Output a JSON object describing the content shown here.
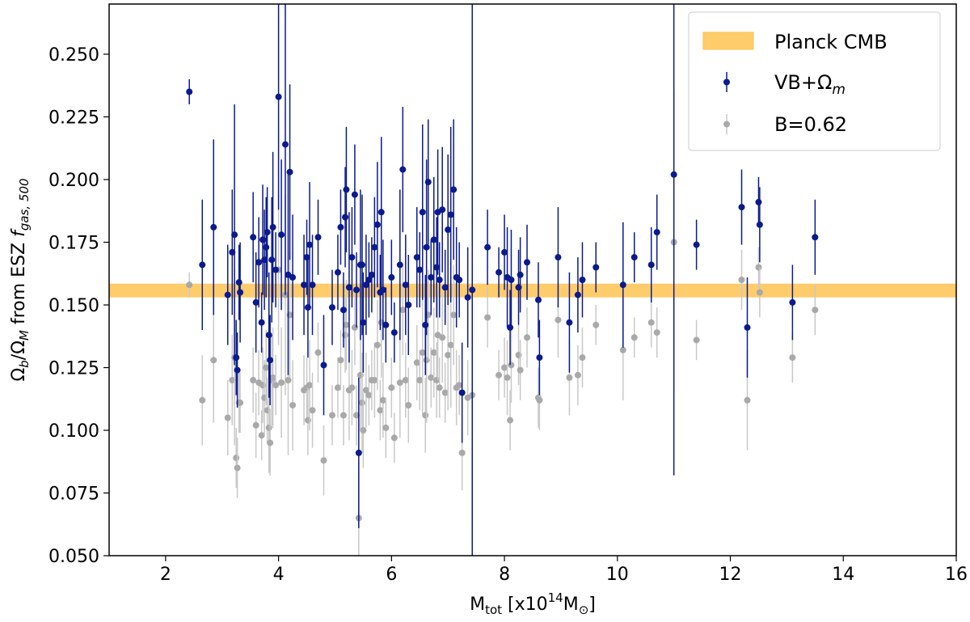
{
  "chart_data": {
    "type": "scatter",
    "title": "",
    "xlabel": {
      "main": "M",
      "sub": "tot",
      "rest1": " [x10",
      "sup": "14",
      "rest2": "M",
      "sub2": "⊙",
      "rest3": "]"
    },
    "ylabel": {
      "a": "Ω",
      "a_sub": "b",
      "b": "/Ω",
      "b_sub": "M",
      "c": " from ESZ ",
      "f": "f",
      "f_sub": "gas, 500"
    },
    "xlim": [
      1,
      16
    ],
    "ylim": [
      0.05,
      0.27
    ],
    "xticks": [
      2,
      4,
      6,
      8,
      10,
      12,
      14,
      16
    ],
    "yticks": [
      0.05,
      0.075,
      0.1,
      0.125,
      0.15,
      0.175,
      0.2,
      0.225,
      0.25
    ],
    "ytick_labels": [
      "0.050",
      "0.075",
      "0.100",
      "0.125",
      "0.150",
      "0.175",
      "0.200",
      "0.225",
      "0.250"
    ],
    "legend_position": "top-right",
    "band": {
      "name": "Planck CMB",
      "ymin": 0.153,
      "ymax": 0.1585,
      "color": "#FFBF47"
    },
    "legend": {
      "band_label": "Planck CMB",
      "s1_main": "VB+Ω",
      "s1_sub": "m",
      "s2_label": "B=0.62"
    },
    "series": [
      {
        "name": "VB+Ωm",
        "color": "#0B1A8C",
        "points": [
          [
            2.42,
            0.235,
            0.005
          ],
          [
            2.65,
            0.166,
            0.026
          ],
          [
            2.85,
            0.181,
            0.035
          ],
          [
            3.1,
            0.154,
            0.02
          ],
          [
            3.18,
            0.171,
            0.025
          ],
          [
            3.22,
            0.178,
            0.052
          ],
          [
            3.25,
            0.129,
            0.015
          ],
          [
            3.27,
            0.124,
            0.015
          ],
          [
            3.3,
            0.159,
            0.015
          ],
          [
            3.32,
            0.155,
            0.02
          ],
          [
            3.55,
            0.177,
            0.018
          ],
          [
            3.6,
            0.151,
            0.02
          ],
          [
            3.65,
            0.167,
            0.018
          ],
          [
            3.7,
            0.143,
            0.012
          ],
          [
            3.72,
            0.176,
            0.022
          ],
          [
            3.75,
            0.168,
            0.02
          ],
          [
            3.78,
            0.173,
            0.02
          ],
          [
            3.8,
            0.179,
            0.018
          ],
          [
            3.83,
            0.138,
            0.025
          ],
          [
            3.85,
            0.128,
            0.018
          ],
          [
            3.88,
            0.168,
            0.025
          ],
          [
            3.9,
            0.181,
            0.03
          ],
          [
            3.95,
            0.164,
            0.015
          ],
          [
            4.0,
            0.233,
            0.045
          ],
          [
            4.05,
            0.178,
            0.03
          ],
          [
            4.12,
            0.214,
            0.06
          ],
          [
            4.17,
            0.162,
            0.04
          ],
          [
            4.2,
            0.203,
            0.035
          ],
          [
            4.25,
            0.161,
            0.025
          ],
          [
            4.45,
            0.158,
            0.02
          ],
          [
            4.5,
            0.169,
            0.015
          ],
          [
            4.52,
            0.149,
            0.02
          ],
          [
            4.55,
            0.174,
            0.025
          ],
          [
            4.6,
            0.158,
            0.02
          ],
          [
            4.7,
            0.177,
            0.015
          ],
          [
            4.8,
            0.126,
            0.02
          ],
          [
            4.95,
            0.149,
            0.015
          ],
          [
            5.05,
            0.163,
            0.015
          ],
          [
            5.1,
            0.181,
            0.015
          ],
          [
            5.15,
            0.148,
            0.015
          ],
          [
            5.18,
            0.185,
            0.02
          ],
          [
            5.2,
            0.196,
            0.025
          ],
          [
            5.25,
            0.157,
            0.03
          ],
          [
            5.3,
            0.169,
            0.02
          ],
          [
            5.35,
            0.194,
            0.02
          ],
          [
            5.38,
            0.156,
            0.015
          ],
          [
            5.42,
            0.091,
            0.03
          ],
          [
            5.45,
            0.166,
            0.03
          ],
          [
            5.48,
            0.166,
            0.028
          ],
          [
            5.5,
            0.143,
            0.02
          ],
          [
            5.55,
            0.158,
            0.02
          ],
          [
            5.6,
            0.16,
            0.015
          ],
          [
            5.65,
            0.162,
            0.015
          ],
          [
            5.7,
            0.173,
            0.02
          ],
          [
            5.75,
            0.182,
            0.025
          ],
          [
            5.8,
            0.155,
            0.015
          ],
          [
            5.82,
            0.187,
            0.03
          ],
          [
            5.85,
            0.156,
            0.02
          ],
          [
            5.9,
            0.142,
            0.015
          ],
          [
            6.0,
            0.161,
            0.015
          ],
          [
            6.05,
            0.139,
            0.012
          ],
          [
            6.15,
            0.166,
            0.03
          ],
          [
            6.2,
            0.204,
            0.025
          ],
          [
            6.25,
            0.158,
            0.02
          ],
          [
            6.3,
            0.15,
            0.02
          ],
          [
            6.45,
            0.169,
            0.02
          ],
          [
            6.5,
            0.164,
            0.015
          ],
          [
            6.55,
            0.187,
            0.035
          ],
          [
            6.6,
            0.142,
            0.02
          ],
          [
            6.62,
            0.173,
            0.035
          ],
          [
            6.65,
            0.199,
            0.025
          ],
          [
            6.7,
            0.161,
            0.015
          ],
          [
            6.75,
            0.176,
            0.025
          ],
          [
            6.8,
            0.165,
            0.02
          ],
          [
            6.82,
            0.187,
            0.025
          ],
          [
            6.85,
            0.16,
            0.015
          ],
          [
            6.9,
            0.188,
            0.025
          ],
          [
            6.95,
            0.157,
            0.015
          ],
          [
            7.0,
            0.18,
            0.03
          ],
          [
            7.05,
            0.186,
            0.035
          ],
          [
            7.1,
            0.196,
            0.028
          ],
          [
            7.15,
            0.161,
            0.02
          ],
          [
            7.2,
            0.16,
            0.015
          ],
          [
            7.25,
            0.115,
            0.02
          ],
          [
            7.35,
            0.153,
            0.02
          ],
          [
            7.43,
            0.156,
            0.115
          ],
          [
            7.7,
            0.173,
            0.015
          ],
          [
            7.9,
            0.163,
            0.01
          ],
          [
            8.0,
            0.171,
            0.015
          ],
          [
            8.05,
            0.161,
            0.02
          ],
          [
            8.1,
            0.141,
            0.015
          ],
          [
            8.12,
            0.16,
            0.02
          ],
          [
            8.25,
            0.157,
            0.015
          ],
          [
            8.28,
            0.162,
            0.015
          ],
          [
            8.4,
            0.167,
            0.015
          ],
          [
            8.6,
            0.152,
            0.015
          ],
          [
            8.62,
            0.129,
            0.015
          ],
          [
            8.95,
            0.169,
            0.02
          ],
          [
            9.15,
            0.143,
            0.02
          ],
          [
            9.3,
            0.154,
            0.015
          ],
          [
            9.38,
            0.16,
            0.015
          ],
          [
            9.62,
            0.165,
            0.01
          ],
          [
            10.1,
            0.158,
            0.025
          ],
          [
            10.3,
            0.169,
            0.01
          ],
          [
            10.6,
            0.166,
            0.015
          ],
          [
            10.7,
            0.179,
            0.015
          ],
          [
            11.0,
            0.202,
            0.12
          ],
          [
            11.4,
            0.174,
            0.01
          ],
          [
            12.2,
            0.189,
            0.015
          ],
          [
            12.3,
            0.141,
            0.02
          ],
          [
            12.5,
            0.191,
            0.01
          ],
          [
            12.52,
            0.182,
            0.015
          ],
          [
            13.1,
            0.151,
            0.015
          ],
          [
            13.5,
            0.177,
            0.015
          ]
        ]
      },
      {
        "name": "B=0.62",
        "color": "#A9A9A9",
        "points": [
          [
            2.42,
            0.158,
            0.005
          ],
          [
            2.65,
            0.112,
            0.018
          ],
          [
            2.85,
            0.128,
            0.025
          ],
          [
            3.1,
            0.105,
            0.015
          ],
          [
            3.18,
            0.12,
            0.018
          ],
          [
            3.22,
            0.129,
            0.035
          ],
          [
            3.25,
            0.089,
            0.012
          ],
          [
            3.27,
            0.085,
            0.012
          ],
          [
            3.3,
            0.111,
            0.012
          ],
          [
            3.32,
            0.111,
            0.012
          ],
          [
            3.55,
            0.12,
            0.013
          ],
          [
            3.6,
            0.102,
            0.013
          ],
          [
            3.65,
            0.119,
            0.013
          ],
          [
            3.7,
            0.098,
            0.01
          ],
          [
            3.72,
            0.118,
            0.015
          ],
          [
            3.75,
            0.113,
            0.015
          ],
          [
            3.78,
            0.125,
            0.015
          ],
          [
            3.8,
            0.108,
            0.013
          ],
          [
            3.83,
            0.101,
            0.018
          ],
          [
            3.85,
            0.095,
            0.013
          ],
          [
            3.88,
            0.12,
            0.018
          ],
          [
            3.9,
            0.121,
            0.02
          ],
          [
            3.95,
            0.118,
            0.012
          ],
          [
            4.0,
            0.164,
            0.03
          ],
          [
            4.05,
            0.119,
            0.022
          ],
          [
            4.12,
            0.154,
            0.04
          ],
          [
            4.17,
            0.12,
            0.03
          ],
          [
            4.2,
            0.146,
            0.025
          ],
          [
            4.25,
            0.11,
            0.018
          ],
          [
            4.45,
            0.116,
            0.014
          ],
          [
            4.5,
            0.117,
            0.012
          ],
          [
            4.52,
            0.104,
            0.014
          ],
          [
            4.55,
            0.118,
            0.018
          ],
          [
            4.6,
            0.108,
            0.015
          ],
          [
            4.7,
            0.131,
            0.012
          ],
          [
            4.8,
            0.088,
            0.014
          ],
          [
            4.95,
            0.106,
            0.012
          ],
          [
            5.05,
            0.117,
            0.012
          ],
          [
            5.1,
            0.128,
            0.012
          ],
          [
            5.15,
            0.106,
            0.012
          ],
          [
            5.18,
            0.138,
            0.015
          ],
          [
            5.2,
            0.142,
            0.018
          ],
          [
            5.25,
            0.116,
            0.02
          ],
          [
            5.3,
            0.117,
            0.015
          ],
          [
            5.35,
            0.141,
            0.015
          ],
          [
            5.38,
            0.106,
            0.012
          ],
          [
            5.42,
            0.065,
            0.022
          ],
          [
            5.45,
            0.122,
            0.022
          ],
          [
            5.48,
            0.111,
            0.02
          ],
          [
            5.5,
            0.1,
            0.015
          ],
          [
            5.55,
            0.116,
            0.015
          ],
          [
            5.6,
            0.114,
            0.012
          ],
          [
            5.65,
            0.12,
            0.012
          ],
          [
            5.7,
            0.12,
            0.015
          ],
          [
            5.75,
            0.134,
            0.018
          ],
          [
            5.8,
            0.108,
            0.012
          ],
          [
            5.82,
            0.143,
            0.022
          ],
          [
            5.85,
            0.112,
            0.015
          ],
          [
            5.9,
            0.101,
            0.012
          ],
          [
            6.0,
            0.117,
            0.012
          ],
          [
            6.05,
            0.097,
            0.01
          ],
          [
            6.15,
            0.119,
            0.022
          ],
          [
            6.2,
            0.148,
            0.018
          ],
          [
            6.25,
            0.12,
            0.015
          ],
          [
            6.3,
            0.11,
            0.015
          ],
          [
            6.45,
            0.127,
            0.015
          ],
          [
            6.5,
            0.12,
            0.012
          ],
          [
            6.55,
            0.131,
            0.025
          ],
          [
            6.6,
            0.106,
            0.015
          ],
          [
            6.62,
            0.128,
            0.025
          ],
          [
            6.65,
            0.146,
            0.018
          ],
          [
            6.7,
            0.121,
            0.012
          ],
          [
            6.75,
            0.131,
            0.018
          ],
          [
            6.8,
            0.12,
            0.015
          ],
          [
            6.82,
            0.138,
            0.018
          ],
          [
            6.85,
            0.117,
            0.012
          ],
          [
            6.9,
            0.137,
            0.018
          ],
          [
            6.95,
            0.115,
            0.012
          ],
          [
            7.0,
            0.13,
            0.022
          ],
          [
            7.05,
            0.134,
            0.025
          ],
          [
            7.1,
            0.146,
            0.02
          ],
          [
            7.15,
            0.117,
            0.015
          ],
          [
            7.2,
            0.118,
            0.012
          ],
          [
            7.25,
            0.091,
            0.015
          ],
          [
            7.35,
            0.113,
            0.015
          ],
          [
            7.43,
            0.114,
            0.05
          ],
          [
            7.7,
            0.145,
            0.012
          ],
          [
            7.9,
            0.122,
            0.01
          ],
          [
            8.0,
            0.125,
            0.012
          ],
          [
            8.05,
            0.121,
            0.015
          ],
          [
            8.1,
            0.104,
            0.012
          ],
          [
            8.12,
            0.126,
            0.015
          ],
          [
            8.25,
            0.13,
            0.012
          ],
          [
            8.28,
            0.124,
            0.012
          ],
          [
            8.4,
            0.137,
            0.012
          ],
          [
            8.6,
            0.113,
            0.012
          ],
          [
            8.62,
            0.112,
            0.012
          ],
          [
            8.95,
            0.144,
            0.015
          ],
          [
            9.15,
            0.121,
            0.015
          ],
          [
            9.3,
            0.122,
            0.012
          ],
          [
            9.38,
            0.129,
            0.012
          ],
          [
            9.62,
            0.142,
            0.008
          ],
          [
            10.1,
            0.132,
            0.02
          ],
          [
            10.3,
            0.137,
            0.008
          ],
          [
            10.6,
            0.143,
            0.01
          ],
          [
            10.7,
            0.139,
            0.01
          ],
          [
            11.0,
            0.175,
            0.06
          ],
          [
            11.4,
            0.136,
            0.008
          ],
          [
            12.2,
            0.16,
            0.012
          ],
          [
            12.3,
            0.112,
            0.02
          ],
          [
            12.5,
            0.165,
            0.008
          ],
          [
            12.52,
            0.155,
            0.01
          ],
          [
            13.1,
            0.129,
            0.01
          ],
          [
            13.5,
            0.148,
            0.01
          ]
        ]
      }
    ]
  }
}
